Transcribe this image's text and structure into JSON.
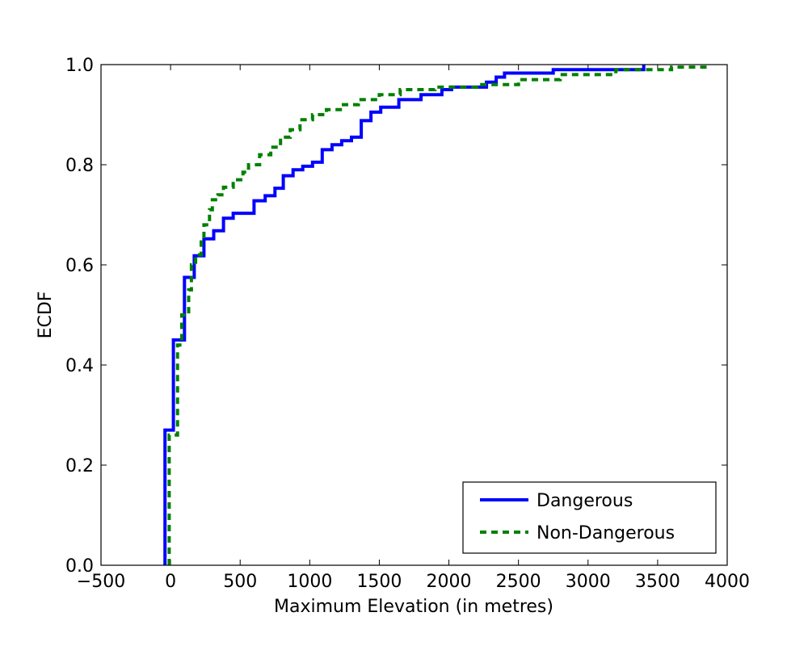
{
  "chart_data": {
    "type": "line",
    "step": true,
    "xlabel": "Maximum Elevation (in metres)",
    "ylabel": "ECDF",
    "xlim": [
      -500,
      4000
    ],
    "ylim": [
      0.0,
      1.0
    ],
    "xticks": [
      -500,
      0,
      500,
      1000,
      1500,
      2000,
      2500,
      3000,
      3500,
      4000
    ],
    "xtick_labels": [
      "−500",
      "0",
      "500",
      "1000",
      "1500",
      "2000",
      "2500",
      "3000",
      "3500",
      "4000"
    ],
    "yticks": [
      0.0,
      0.2,
      0.4,
      0.6,
      0.8,
      1.0
    ],
    "ytick_labels": [
      "0.0",
      "0.2",
      "0.4",
      "0.6",
      "0.8",
      "1.0"
    ],
    "grid": false,
    "legend_position": "lower-right",
    "series": [
      {
        "name": "Dangerous",
        "color": "#0000ff",
        "style": "solid",
        "points": [
          [
            -40,
            0.0
          ],
          [
            -40,
            0.27
          ],
          [
            20,
            0.27
          ],
          [
            20,
            0.45
          ],
          [
            100,
            0.45
          ],
          [
            100,
            0.575
          ],
          [
            170,
            0.575
          ],
          [
            170,
            0.618
          ],
          [
            240,
            0.618
          ],
          [
            240,
            0.652
          ],
          [
            310,
            0.652
          ],
          [
            310,
            0.668
          ],
          [
            380,
            0.668
          ],
          [
            380,
            0.693
          ],
          [
            450,
            0.693
          ],
          [
            450,
            0.703
          ],
          [
            600,
            0.703
          ],
          [
            600,
            0.728
          ],
          [
            680,
            0.728
          ],
          [
            680,
            0.738
          ],
          [
            750,
            0.738
          ],
          [
            750,
            0.753
          ],
          [
            810,
            0.753
          ],
          [
            810,
            0.778
          ],
          [
            880,
            0.778
          ],
          [
            880,
            0.79
          ],
          [
            950,
            0.79
          ],
          [
            950,
            0.797
          ],
          [
            1020,
            0.797
          ],
          [
            1020,
            0.805
          ],
          [
            1090,
            0.805
          ],
          [
            1090,
            0.83
          ],
          [
            1160,
            0.83
          ],
          [
            1160,
            0.84
          ],
          [
            1230,
            0.84
          ],
          [
            1230,
            0.848
          ],
          [
            1300,
            0.848
          ],
          [
            1300,
            0.855
          ],
          [
            1370,
            0.855
          ],
          [
            1370,
            0.888
          ],
          [
            1440,
            0.888
          ],
          [
            1440,
            0.905
          ],
          [
            1510,
            0.905
          ],
          [
            1510,
            0.915
          ],
          [
            1640,
            0.915
          ],
          [
            1640,
            0.93
          ],
          [
            1800,
            0.93
          ],
          [
            1800,
            0.94
          ],
          [
            1950,
            0.94
          ],
          [
            1950,
            0.95
          ],
          [
            2020,
            0.95
          ],
          [
            2020,
            0.955
          ],
          [
            2270,
            0.955
          ],
          [
            2270,
            0.965
          ],
          [
            2340,
            0.965
          ],
          [
            2340,
            0.975
          ],
          [
            2400,
            0.975
          ],
          [
            2400,
            0.983
          ],
          [
            2750,
            0.983
          ],
          [
            2750,
            0.99
          ],
          [
            3400,
            0.99
          ],
          [
            3400,
            1.0
          ]
        ]
      },
      {
        "name": "Non-Dangerous",
        "color": "#008000",
        "style": "dashed",
        "points": [
          [
            -10,
            0.0
          ],
          [
            -10,
            0.26
          ],
          [
            50,
            0.26
          ],
          [
            50,
            0.44
          ],
          [
            80,
            0.44
          ],
          [
            80,
            0.5
          ],
          [
            110,
            0.5
          ],
          [
            130,
            0.5
          ],
          [
            130,
            0.55
          ],
          [
            150,
            0.55
          ],
          [
            150,
            0.6
          ],
          [
            180,
            0.6
          ],
          [
            180,
            0.62
          ],
          [
            220,
            0.62
          ],
          [
            220,
            0.65
          ],
          [
            240,
            0.65
          ],
          [
            240,
            0.68
          ],
          [
            280,
            0.68
          ],
          [
            280,
            0.71
          ],
          [
            300,
            0.71
          ],
          [
            300,
            0.73
          ],
          [
            340,
            0.73
          ],
          [
            340,
            0.74
          ],
          [
            380,
            0.74
          ],
          [
            380,
            0.755
          ],
          [
            450,
            0.755
          ],
          [
            450,
            0.77
          ],
          [
            520,
            0.77
          ],
          [
            520,
            0.785
          ],
          [
            560,
            0.785
          ],
          [
            560,
            0.8
          ],
          [
            640,
            0.8
          ],
          [
            640,
            0.82
          ],
          [
            720,
            0.82
          ],
          [
            720,
            0.835
          ],
          [
            790,
            0.835
          ],
          [
            790,
            0.855
          ],
          [
            860,
            0.855
          ],
          [
            860,
            0.87
          ],
          [
            930,
            0.87
          ],
          [
            930,
            0.89
          ],
          [
            1020,
            0.89
          ],
          [
            1020,
            0.9
          ],
          [
            1120,
            0.9
          ],
          [
            1120,
            0.91
          ],
          [
            1220,
            0.91
          ],
          [
            1220,
            0.92
          ],
          [
            1350,
            0.92
          ],
          [
            1350,
            0.93
          ],
          [
            1500,
            0.93
          ],
          [
            1500,
            0.94
          ],
          [
            1650,
            0.94
          ],
          [
            1650,
            0.95
          ],
          [
            1900,
            0.95
          ],
          [
            1900,
            0.955
          ],
          [
            2200,
            0.955
          ],
          [
            2200,
            0.96
          ],
          [
            2500,
            0.96
          ],
          [
            2500,
            0.97
          ],
          [
            2800,
            0.97
          ],
          [
            2800,
            0.98
          ],
          [
            3200,
            0.98
          ],
          [
            3200,
            0.99
          ],
          [
            3600,
            0.99
          ],
          [
            3600,
            0.995
          ],
          [
            3870,
            0.995
          ],
          [
            3870,
            1.0
          ]
        ]
      }
    ]
  }
}
